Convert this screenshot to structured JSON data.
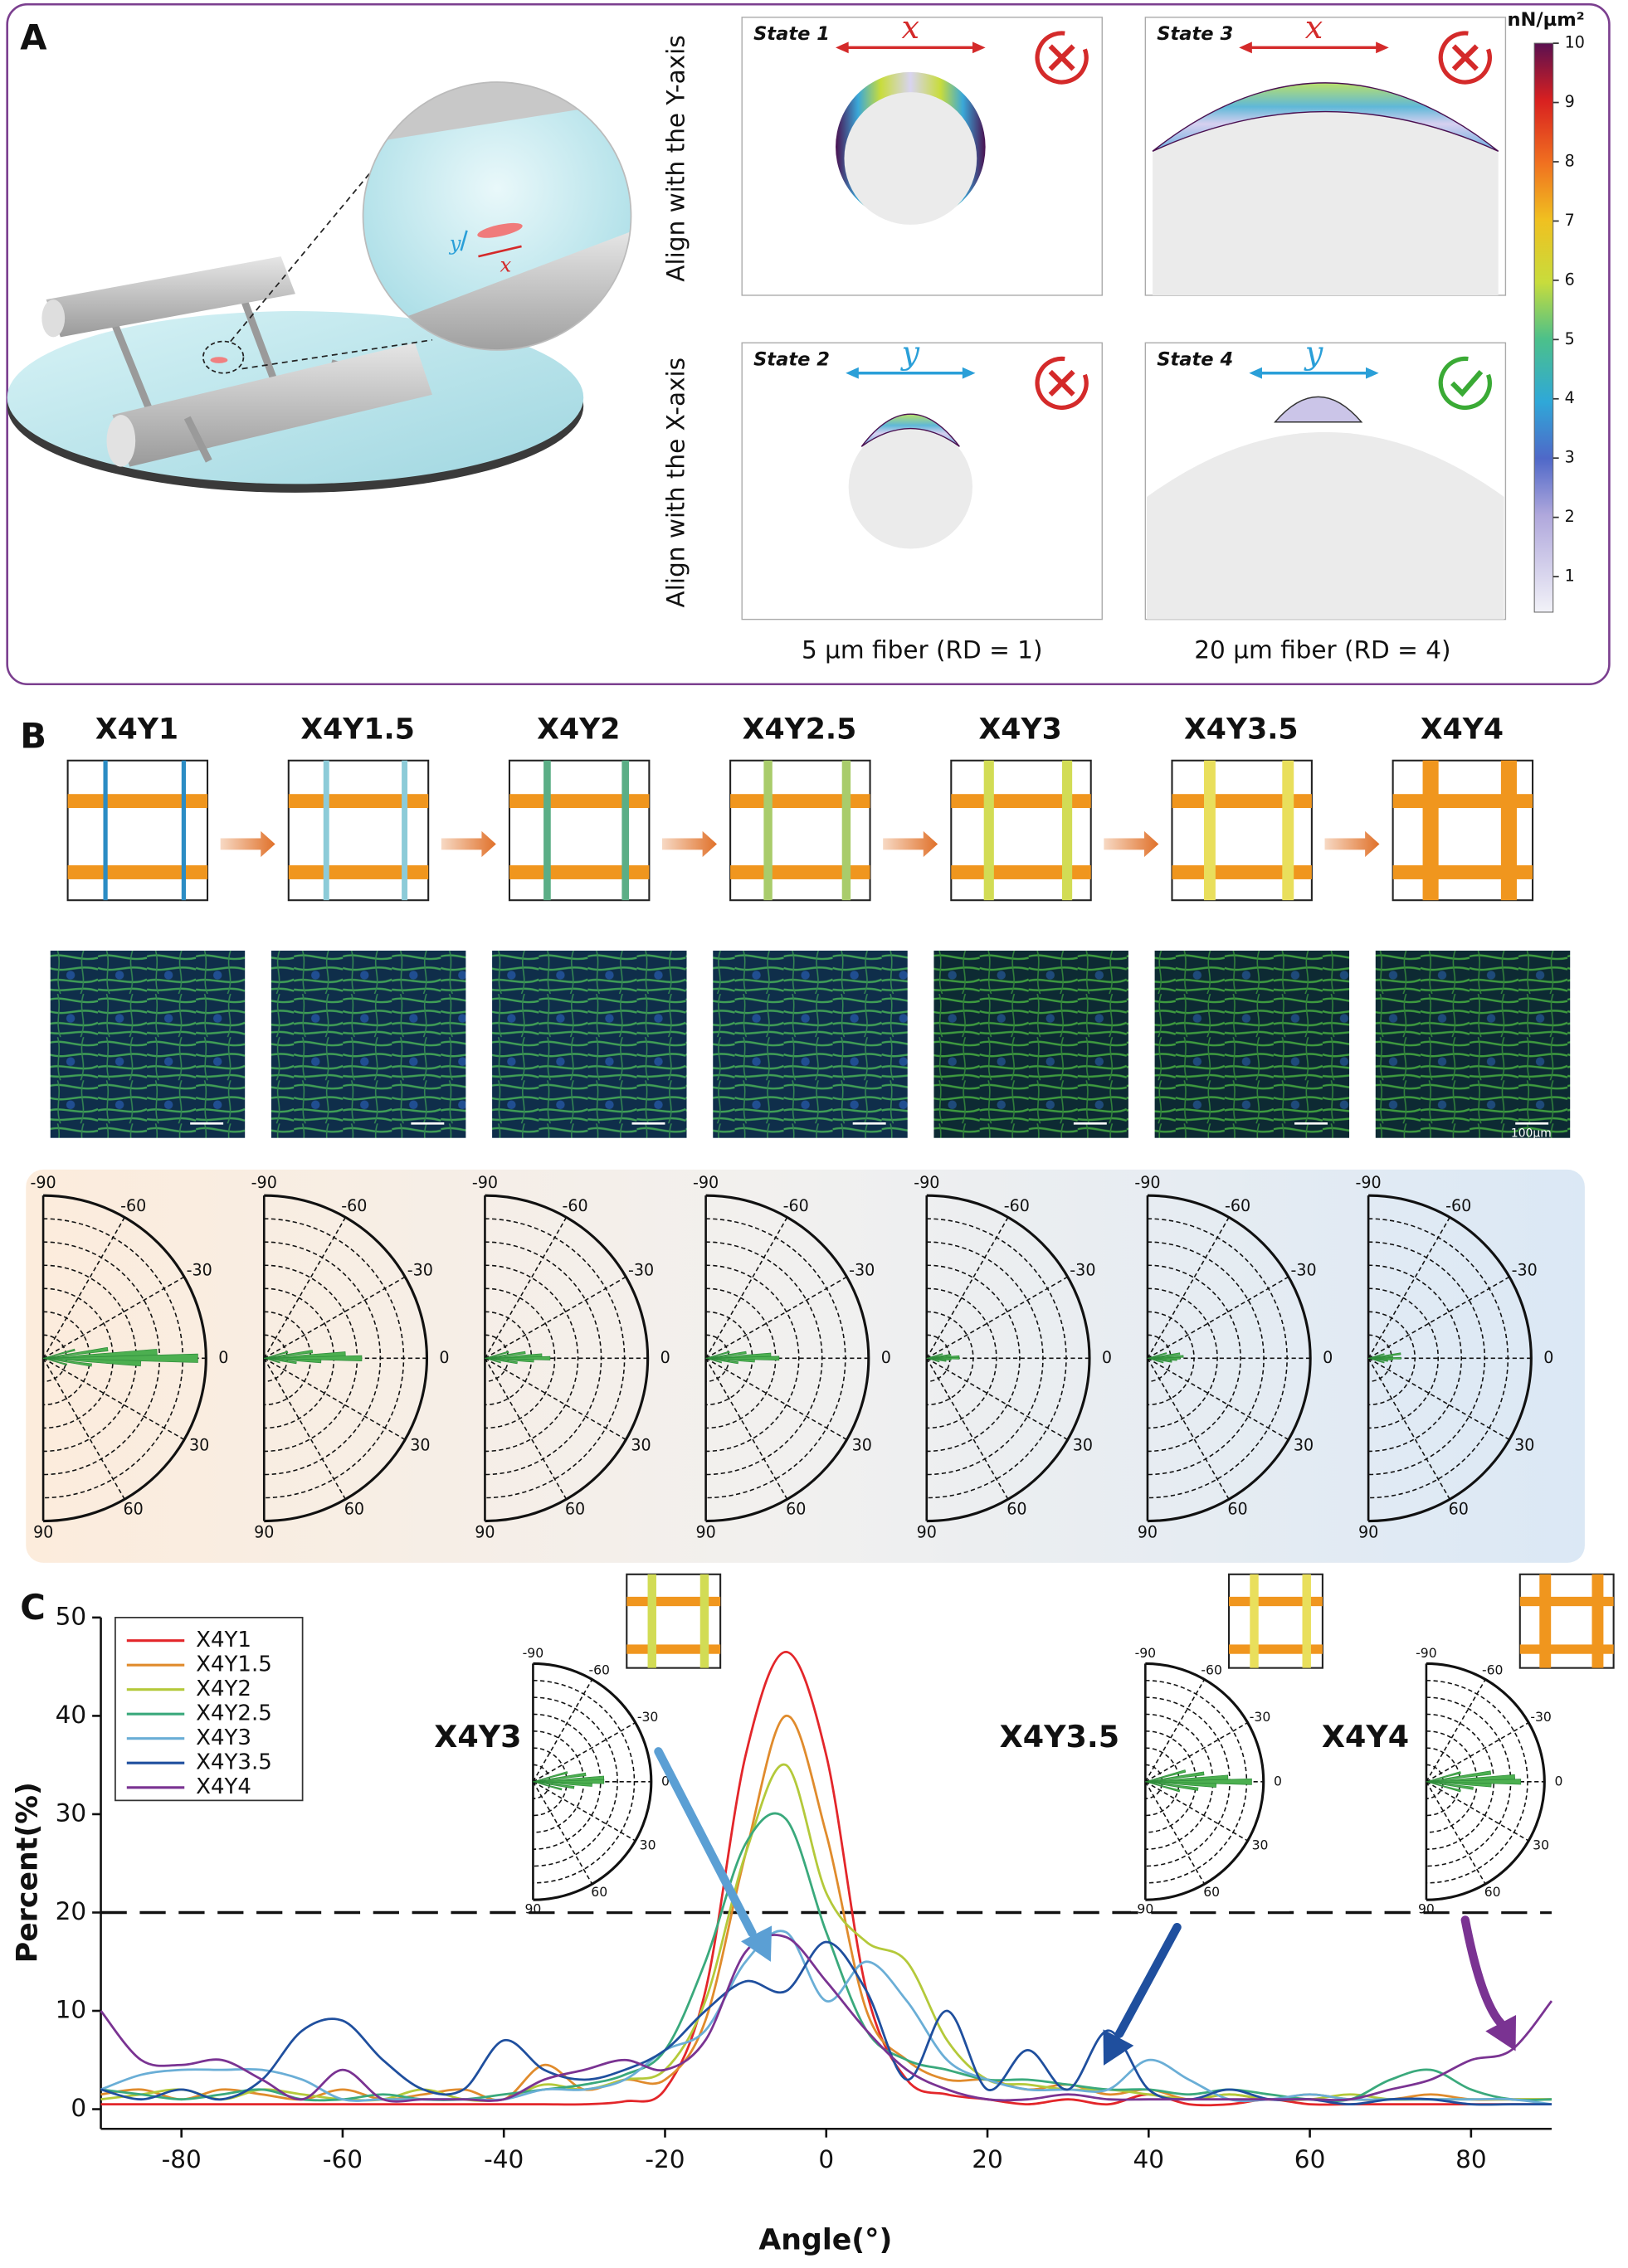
{
  "panel_a": {
    "label": "A",
    "zoom_axes": [
      "y",
      "x"
    ],
    "states": [
      {
        "title": "State 1",
        "direction": "x",
        "arrow_color": "#d42a2a",
        "result": "cross"
      },
      {
        "title": "State 3",
        "direction": "x",
        "arrow_color": "#d42a2a",
        "result": "cross"
      },
      {
        "title": "State 2",
        "direction": "y",
        "arrow_color": "#2a9fd8",
        "result": "cross"
      },
      {
        "title": "State 4",
        "direction": "y",
        "arrow_color": "#2a9fd8",
        "result": "check"
      }
    ],
    "row_labels": [
      "Align with the Y-axis",
      "Align with the X-axis"
    ],
    "column_labels": [
      "5 µm fiber (RD = 1)",
      "20 µm fiber (RD = 4)"
    ],
    "colorbar": {
      "title": "nN/µm²",
      "lim": [
        0.4,
        10
      ],
      "ticks": [
        1,
        2,
        3,
        4,
        5,
        6,
        7,
        8,
        9,
        10
      ]
    }
  },
  "panel_b": {
    "label": "B",
    "groups": [
      "X4Y1",
      "X4Y1.5",
      "X4Y2",
      "X4Y2.5",
      "X4Y3",
      "X4Y3.5",
      "X4Y4"
    ],
    "bar_colors": [
      "#2b8cc4",
      "#8ccbd8",
      "#5bae86",
      "#a9cc6b",
      "#d2dc55",
      "#e9df5c",
      "#f0961e"
    ],
    "cross_color": "#f0961e",
    "scale_bar": "100µm",
    "polar_ticks": [
      -90,
      -60,
      -30,
      0,
      30,
      60,
      90
    ],
    "rose_angles": [
      -15,
      -8,
      -3,
      0,
      3,
      8,
      15
    ],
    "rose_color": "#4caf50",
    "roses": [
      [
        0.2,
        0.4,
        0.7,
        0.95,
        0.6,
        0.3,
        0.15
      ],
      [
        0.15,
        0.3,
        0.5,
        0.6,
        0.35,
        0.2,
        0.1
      ],
      [
        0.15,
        0.25,
        0.35,
        0.4,
        0.3,
        0.2,
        0.1
      ],
      [
        0.15,
        0.25,
        0.4,
        0.45,
        0.3,
        0.2,
        0.1
      ],
      [
        0.1,
        0.15,
        0.2,
        0.2,
        0.15,
        0.12,
        0.08
      ],
      [
        0.12,
        0.2,
        0.22,
        0.2,
        0.18,
        0.15,
        0.1
      ],
      [
        0.1,
        0.2,
        0.15,
        0.2,
        0.15,
        0.12,
        0.1
      ]
    ]
  },
  "chart_data": {
    "type": "line",
    "label": "C",
    "xlabel": "Angle(°)",
    "ylabel": "Percent(%)",
    "xlim": [
      -90,
      90
    ],
    "xticks": [
      -80,
      -60,
      -40,
      -20,
      0,
      20,
      40,
      60,
      80
    ],
    "ylim": [
      -2,
      50
    ],
    "yticks": [
      0,
      10,
      20,
      30,
      40,
      50
    ],
    "reference_line": 20,
    "x": [
      -90,
      -85,
      -80,
      -75,
      -70,
      -65,
      -60,
      -55,
      -50,
      -45,
      -40,
      -35,
      -30,
      -25,
      -20,
      -15,
      -10,
      -5,
      0,
      5,
      10,
      15,
      20,
      25,
      30,
      35,
      40,
      45,
      50,
      55,
      60,
      65,
      70,
      75,
      80,
      85,
      90
    ],
    "series": [
      {
        "name": "X4Y1",
        "color": "#e3262a",
        "values": [
          0.5,
          0.5,
          0.5,
          0.5,
          0.5,
          0.5,
          0.5,
          0.5,
          0.5,
          0.5,
          0.5,
          0.5,
          0.5,
          0.8,
          2,
          12,
          36,
          46.5,
          36,
          12,
          3,
          1.5,
          1,
          0.5,
          1,
          0.5,
          1.5,
          0.5,
          0.5,
          1,
          0.5,
          0.5,
          0.5,
          0.5,
          0.5,
          0.5,
          0.5
        ]
      },
      {
        "name": "X4Y1.5",
        "color": "#e08b2c",
        "values": [
          1.5,
          2,
          1,
          2,
          1.5,
          1,
          2,
          1,
          1.5,
          2,
          1,
          4.5,
          2,
          3,
          3,
          9,
          26,
          40,
          28,
          10,
          5,
          3,
          3,
          2,
          2.5,
          1.5,
          2,
          1,
          1.5,
          1,
          1.5,
          1,
          1,
          1.5,
          1,
          1,
          1
        ]
      },
      {
        "name": "X4Y2",
        "color": "#b4c93a",
        "values": [
          1,
          1.5,
          2,
          1,
          2,
          1.5,
          1,
          1,
          2,
          1,
          1,
          2.5,
          2,
          3,
          4,
          11,
          26,
          35,
          22,
          17,
          15,
          7,
          3,
          2.5,
          2,
          2,
          1.5,
          1,
          1.5,
          1,
          1,
          1.5,
          1,
          1,
          1,
          1,
          1
        ]
      },
      {
        "name": "X4Y2.5",
        "color": "#3aa97c",
        "values": [
          2,
          1.5,
          1,
          1.5,
          2,
          1,
          1,
          1.5,
          1,
          1,
          1.5,
          2,
          2.5,
          3.5,
          6,
          15,
          27,
          29.5,
          18,
          8,
          5,
          4,
          3,
          3,
          2.5,
          2,
          2,
          1.5,
          2,
          1.5,
          1,
          1,
          3,
          4,
          2,
          1,
          1
        ]
      },
      {
        "name": "X4Y3",
        "color": "#6aaed6",
        "values": [
          2,
          3.5,
          4,
          4,
          4,
          3,
          1,
          1,
          1,
          1,
          1,
          2,
          2,
          3,
          6,
          8,
          15,
          18,
          11,
          15,
          11,
          5,
          3,
          2,
          2,
          2,
          5,
          3,
          1,
          1,
          1.5,
          1,
          1,
          1,
          1,
          1,
          0.5
        ]
      },
      {
        "name": "X4Y3.5",
        "color": "#1f4f9e",
        "values": [
          2,
          1,
          2,
          1,
          3,
          8,
          9,
          5,
          2,
          2,
          7,
          4,
          3,
          4,
          6,
          10,
          13,
          12,
          17,
          12,
          3,
          10,
          2,
          6,
          2,
          8,
          2,
          1,
          2,
          1,
          1,
          0.5,
          1,
          1,
          0.5,
          0.5,
          0.5
        ]
      },
      {
        "name": "X4Y4",
        "color": "#7a3392",
        "values": [
          10,
          5,
          4.5,
          5,
          3,
          1,
          4,
          1,
          1,
          1,
          1,
          3,
          4,
          5,
          4,
          7,
          16,
          17.5,
          13,
          8,
          4,
          2,
          1,
          1,
          1.5,
          1,
          1,
          1,
          1,
          1,
          1,
          1,
          2,
          3,
          5,
          6,
          11
        ]
      }
    ],
    "insets": [
      {
        "label": "X4Y3",
        "scheme_color": "#d2dc55",
        "arrow_color": "#5b9fd4",
        "rose": [
          0.3,
          0.45,
          0.6,
          0.6,
          0.5,
          0.35,
          0.25
        ]
      },
      {
        "label": "X4Y3.5",
        "scheme_color": "#e9df5c",
        "arrow_color": "#1f4f9e",
        "rose": [
          0.35,
          0.5,
          0.7,
          0.9,
          0.6,
          0.45,
          0.3
        ]
      },
      {
        "label": "X4Y4",
        "scheme_color": "#f0961e",
        "arrow_color": "#7a3392",
        "rose": [
          0.3,
          0.55,
          0.75,
          0.8,
          0.55,
          0.4,
          0.3
        ]
      }
    ]
  }
}
